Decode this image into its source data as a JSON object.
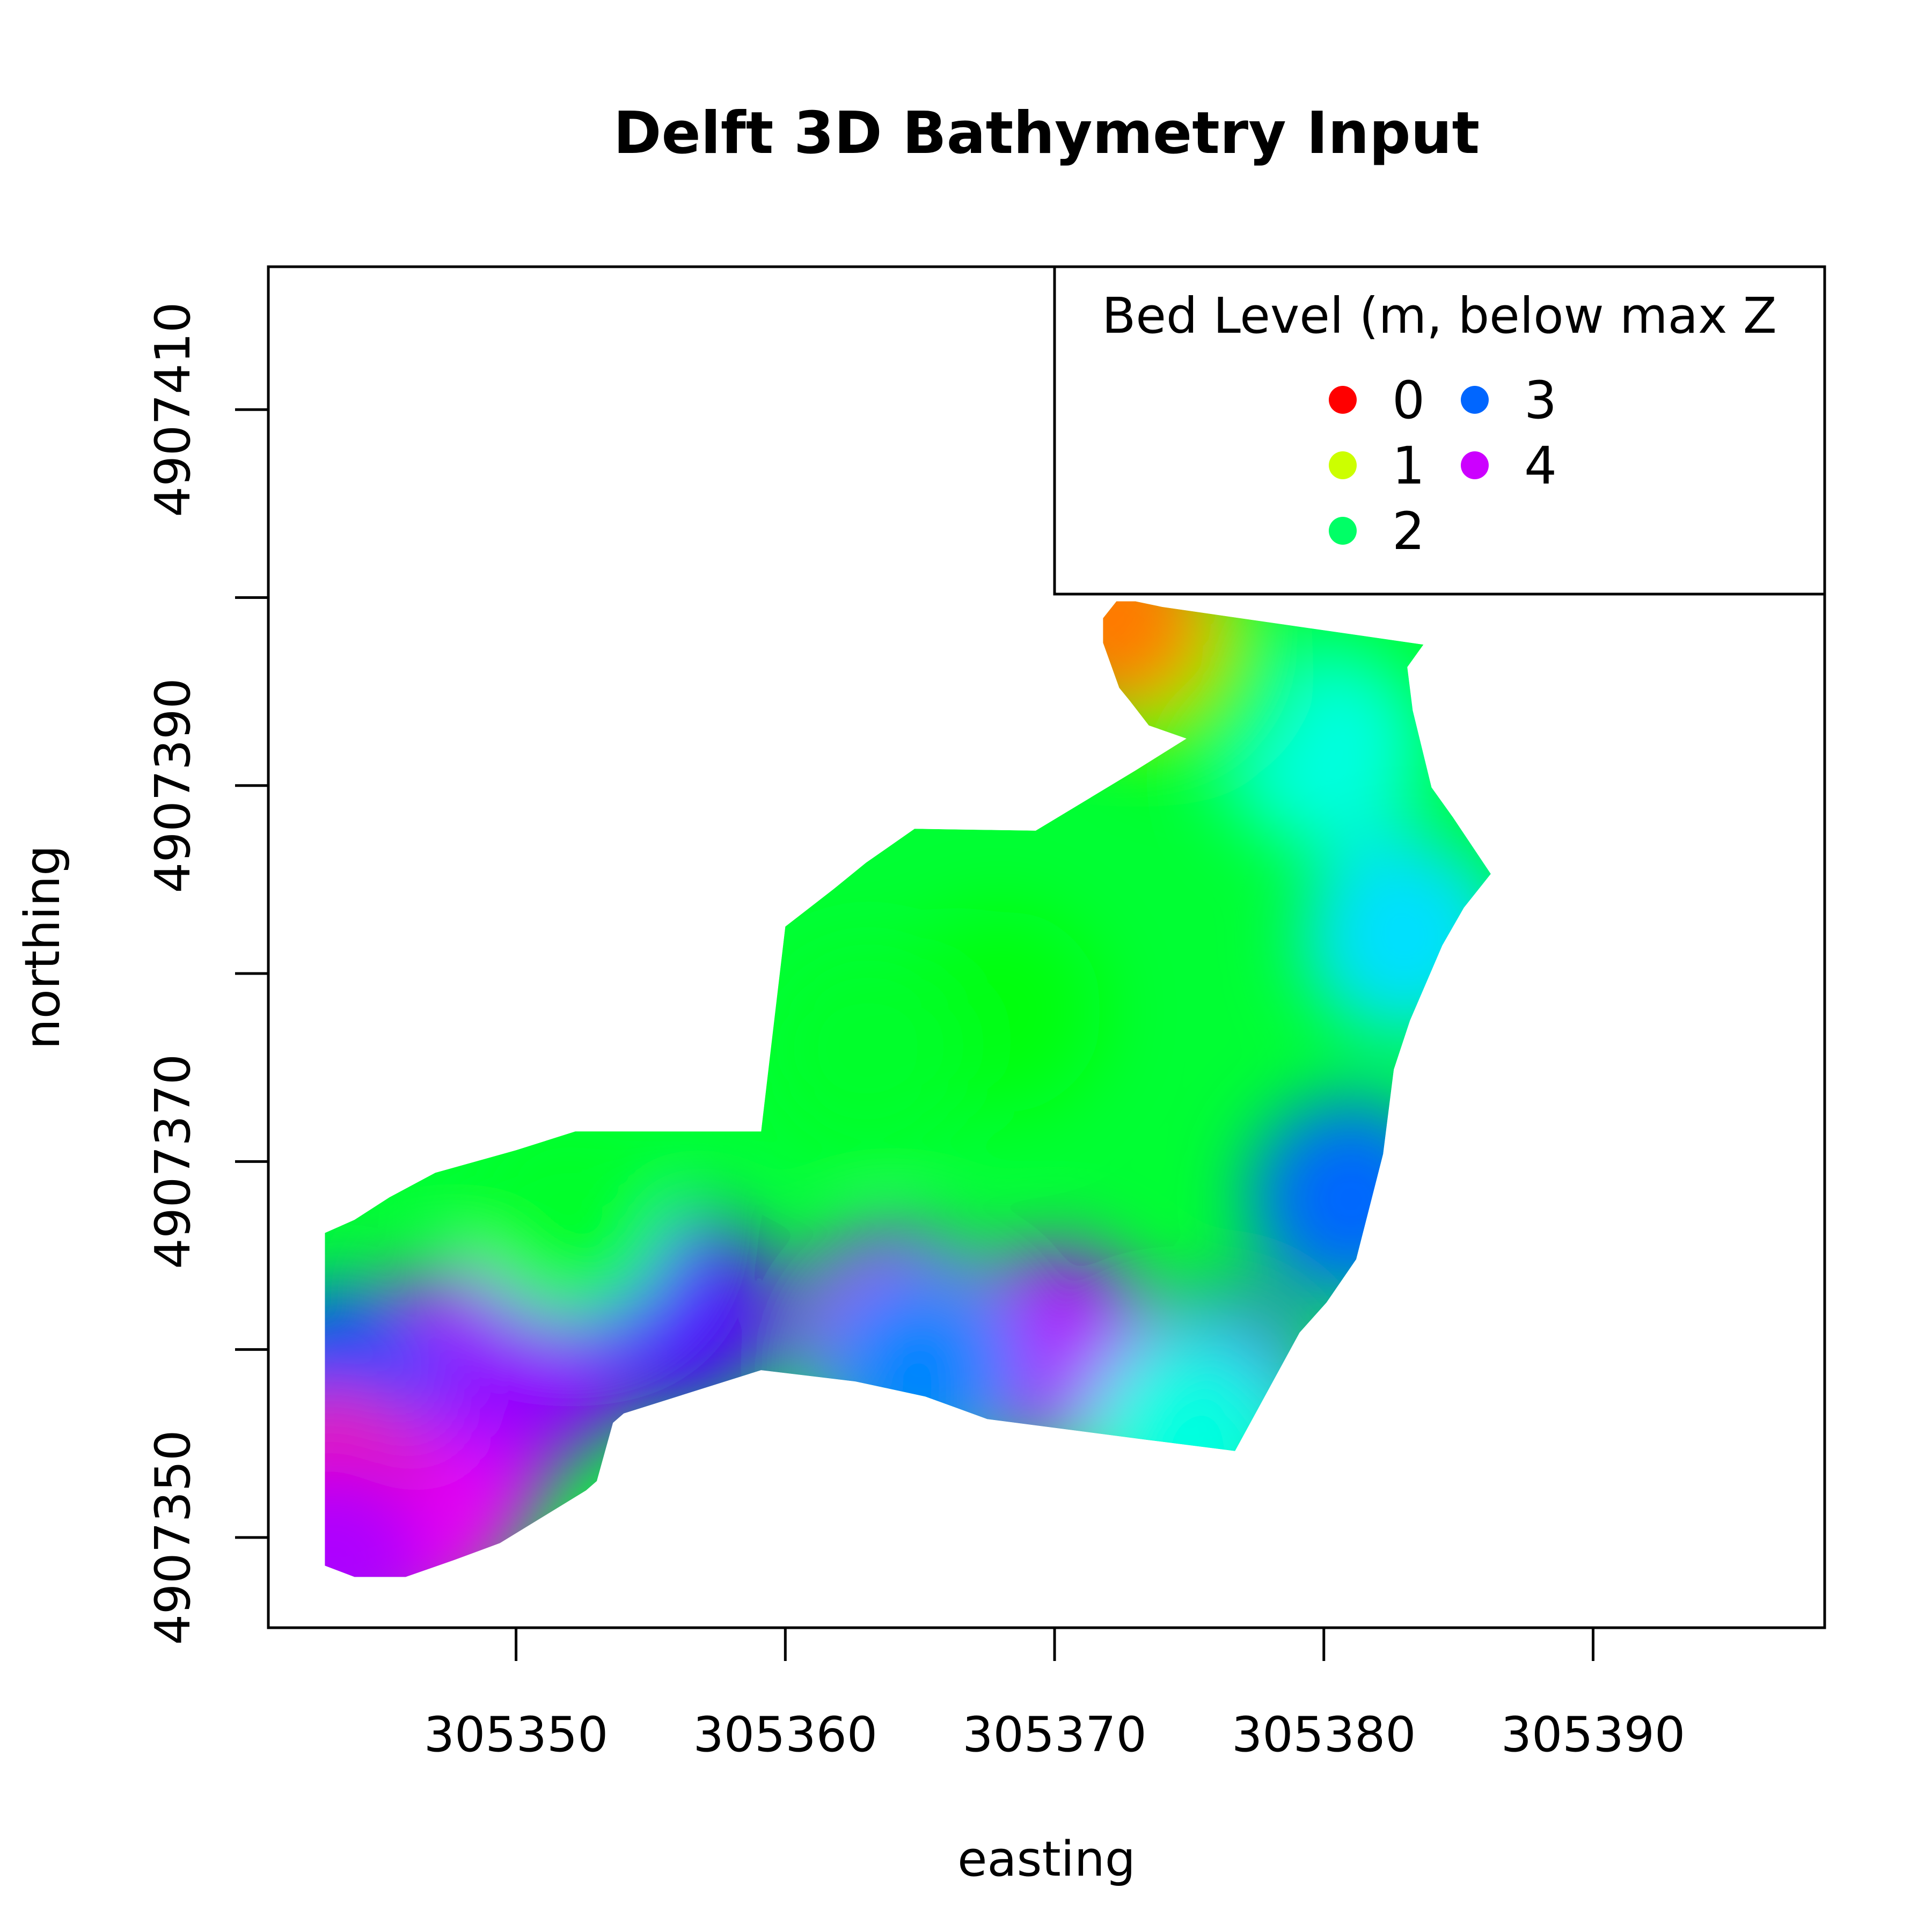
{
  "chart_data": {
    "type": "heatmap",
    "title": "Delft 3D Bathymetry Input",
    "xlabel": "easting",
    "ylabel": "northing",
    "xlim": [
      305340.8,
      305398.6
    ],
    "ylim": [
      4907345.2,
      4907417.6
    ],
    "x_ticks": [
      305350,
      305360,
      305370,
      305380,
      305390
    ],
    "y_ticks": [
      4907350,
      4907360,
      4907370,
      4907380,
      4907390,
      4907400,
      4907410
    ],
    "y_tick_labels_shown": [
      "4907350",
      "4907370",
      "4907390",
      "4907410"
    ],
    "grid": false,
    "legend": {
      "title": "Bed Level (m, below max Z",
      "position": "top-right",
      "entries": [
        {
          "label": "0",
          "value": 0,
          "color": "#ff0000"
        },
        {
          "label": "1",
          "value": 1,
          "color": "#ccff00"
        },
        {
          "label": "2",
          "value": 2,
          "color": "#00ff66"
        },
        {
          "label": "3",
          "value": 3,
          "color": "#0066ff"
        },
        {
          "label": "4",
          "value": 4,
          "color": "#cc00ff"
        }
      ]
    },
    "colorscale": "rainbow (red = shallow, magenta = deep)",
    "channel_outline": [
      [
        305342.9,
        4907348.5
      ],
      [
        305344.0,
        4907347.9
      ],
      [
        305345.9,
        4907347.9
      ],
      [
        305347.7,
        4907348.8
      ],
      [
        305349.4,
        4907349.7
      ],
      [
        305352.6,
        4907352.5
      ],
      [
        305353.0,
        4907353.0
      ],
      [
        305353.6,
        4907356.1
      ],
      [
        305354.0,
        4907356.6
      ],
      [
        305359.1,
        4907358.9
      ],
      [
        305362.6,
        4907358.3
      ],
      [
        305365.2,
        4907357.5
      ],
      [
        305367.5,
        4907356.3
      ],
      [
        305373.4,
        4907355.2
      ],
      [
        305376.7,
        4907354.6
      ],
      [
        305379.1,
        4907360.9
      ],
      [
        305380.1,
        4907362.5
      ],
      [
        305381.2,
        4907364.8
      ],
      [
        305382.2,
        4907370.4
      ],
      [
        305382.6,
        4907374.9
      ],
      [
        305383.2,
        4907377.5
      ],
      [
        305384.4,
        4907381.5
      ],
      [
        305385.2,
        4907383.5
      ],
      [
        305386.2,
        4907385.3
      ],
      [
        305384.8,
        4907388.3
      ],
      [
        305384.0,
        4907389.9
      ],
      [
        305383.3,
        4907394.0
      ],
      [
        305383.1,
        4907396.3
      ],
      [
        305383.7,
        4907397.5
      ],
      [
        305374.0,
        4907399.5
      ],
      [
        305373.0,
        4907399.8
      ],
      [
        305372.3,
        4907399.8
      ],
      [
        305371.8,
        4907398.9
      ],
      [
        305371.8,
        4907397.6
      ],
      [
        305372.4,
        4907395.2
      ],
      [
        305372.8,
        4907394.5
      ],
      [
        305373.5,
        4907393.2
      ],
      [
        305374.9,
        4907392.5
      ],
      [
        305373.0,
        4907390.8
      ],
      [
        305369.3,
        4907387.6
      ],
      [
        305364.8,
        4907387.7
      ],
      [
        305363.7,
        4907386.6
      ],
      [
        305363.0,
        4907385.9
      ],
      [
        305361.8,
        4907384.5
      ],
      [
        305360.0,
        4907382.5
      ],
      [
        305359.1,
        4907371.6
      ],
      [
        305352.2,
        4907371.6
      ],
      [
        305350.0,
        4907370.6
      ],
      [
        305347.0,
        4907369.4
      ],
      [
        305345.3,
        4907368.1
      ],
      [
        305344.0,
        4907366.9
      ],
      [
        305342.9,
        4907366.2
      ]
    ],
    "depth_field_samples": [
      {
        "x": 305346.0,
        "y": 4907350.5,
        "depth": 4.3
      },
      {
        "x": 305347.5,
        "y": 4907354.0,
        "depth": 4.1
      },
      {
        "x": 305348.0,
        "y": 4907359.0,
        "depth": 4.0
      },
      {
        "x": 305351.0,
        "y": 4907359.5,
        "depth": 3.8
      },
      {
        "x": 305356.0,
        "y": 4907362.0,
        "depth": 3.6
      },
      {
        "x": 305364.0,
        "y": 4907361.0,
        "depth": 3.9
      },
      {
        "x": 305370.0,
        "y": 4907360.0,
        "depth": 3.9
      },
      {
        "x": 305376.0,
        "y": 4907357.5,
        "depth": 3.6
      },
      {
        "x": 305381.0,
        "y": 4907368.0,
        "depth": 3.0
      },
      {
        "x": 305383.0,
        "y": 4907382.0,
        "depth": 2.6
      },
      {
        "x": 305380.0,
        "y": 4907392.0,
        "depth": 2.4
      },
      {
        "x": 305375.0,
        "y": 4907396.0,
        "depth": 1.6
      },
      {
        "x": 305372.2,
        "y": 4907399.0,
        "depth": 0.4
      },
      {
        "x": 305368.0,
        "y": 4907378.0,
        "depth": 1.7
      },
      {
        "x": 305363.0,
        "y": 4907376.0,
        "depth": 1.8
      },
      {
        "x": 305352.0,
        "y": 4907367.0,
        "depth": 1.8
      },
      {
        "x": 305343.5,
        "y": 4907358.0,
        "depth": 3.1
      },
      {
        "x": 305343.2,
        "y": 4907352.0,
        "depth": 4.5
      },
      {
        "x": 305343.2,
        "y": 4907348.8,
        "depth": 3.9
      },
      {
        "x": 305365.0,
        "y": 4907359.0,
        "depth": 2.9
      },
      {
        "x": 305375.0,
        "y": 4907355.5,
        "depth": 2.4
      }
    ]
  }
}
